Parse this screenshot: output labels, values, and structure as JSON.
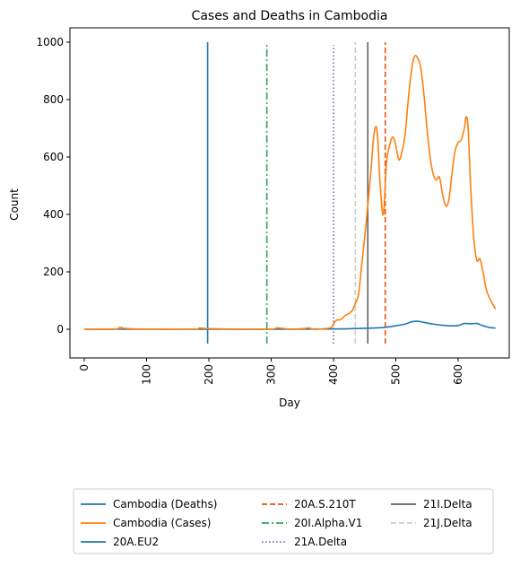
{
  "chart_data": {
    "type": "line",
    "title": "Cases and Deaths in Cambodia",
    "xlabel": "Day",
    "ylabel": "Count",
    "xlim": [
      -23,
      682
    ],
    "ylim": [
      -100,
      1050
    ],
    "xticks": [
      0,
      100,
      200,
      300,
      400,
      500,
      600
    ],
    "yticks": [
      0,
      200,
      400,
      600,
      800,
      1000
    ],
    "grid": false,
    "legend_position": "bottom, below plot",
    "series": [
      {
        "name": "Cambodia (Deaths)",
        "color": "#1f77b4",
        "style": "solid",
        "x": [
          0,
          100,
          200,
          300,
          400,
          430,
          460,
          480,
          500,
          515,
          525,
          535,
          545,
          560,
          575,
          590,
          600,
          610,
          620,
          630,
          640,
          650,
          660
        ],
        "y": [
          0,
          0,
          0,
          0,
          1,
          2,
          4,
          6,
          12,
          18,
          26,
          28,
          24,
          18,
          14,
          12,
          13,
          20,
          19,
          20,
          12,
          6,
          4
        ]
      },
      {
        "name": "Cambodia (Cases)",
        "color": "#ff7f0e",
        "style": "solid",
        "x": [
          0,
          50,
          55,
          60,
          65,
          100,
          150,
          180,
          185,
          200,
          250,
          300,
          310,
          330,
          355,
          360,
          370,
          395,
          400,
          405,
          410,
          415,
          420,
          425,
          430,
          435,
          440,
          445,
          450,
          455,
          460,
          465,
          470,
          475,
          480,
          485,
          490,
          495,
          500,
          505,
          510,
          515,
          520,
          525,
          530,
          535,
          540,
          545,
          550,
          555,
          560,
          565,
          570,
          575,
          580,
          585,
          590,
          595,
          600,
          605,
          610,
          613,
          616,
          620,
          625,
          630,
          635,
          640,
          645,
          650,
          655,
          660
        ],
        "y": [
          0,
          0,
          5,
          7,
          3,
          0,
          0,
          0,
          4,
          2,
          0,
          0,
          5,
          0,
          3,
          5,
          0,
          5,
          20,
          32,
          33,
          40,
          50,
          55,
          65,
          90,
          120,
          220,
          320,
          430,
          550,
          680,
          690,
          500,
          400,
          580,
          640,
          670,
          640,
          590,
          620,
          680,
          800,
          900,
          950,
          945,
          910,
          820,
          700,
          600,
          540,
          520,
          530,
          470,
          430,
          450,
          540,
          620,
          650,
          660,
          700,
          740,
          700,
          500,
          320,
          240,
          245,
          200,
          140,
          110,
          90,
          70
        ]
      }
    ],
    "markers": [
      {
        "name": "20A.EU2",
        "x": 198,
        "color": "#1f77b4",
        "style": "solid",
        "y0": -50,
        "y1": 1000
      },
      {
        "name": "20A.S.210T",
        "x": 483,
        "color": "#e6550d",
        "style": "dashed",
        "y0": -50,
        "y1": 1000
      },
      {
        "name": "20I.Alpha.V1",
        "x": 293,
        "color": "#31a354",
        "style": "dashdot",
        "y0": -50,
        "y1": 1000
      },
      {
        "name": "21A.Delta",
        "x": 400,
        "color": "#756bb1",
        "style": "dotted",
        "y0": -50,
        "y1": 990
      },
      {
        "name": "21I.Delta",
        "x": 455,
        "color": "#636363",
        "style": "solid",
        "y0": -50,
        "y1": 1000
      },
      {
        "name": "21J.Delta",
        "x": 435,
        "color": "#cccccc",
        "style": "dashed",
        "y0": -50,
        "y1": 1000
      }
    ],
    "legend": [
      [
        "Cambodia (Deaths)",
        "Cambodia (Cases)",
        "20A.EU2"
      ],
      [
        "20A.S.210T",
        "20I.Alpha.V1",
        "21A.Delta"
      ],
      [
        "21I.Delta",
        "21J.Delta"
      ]
    ]
  }
}
